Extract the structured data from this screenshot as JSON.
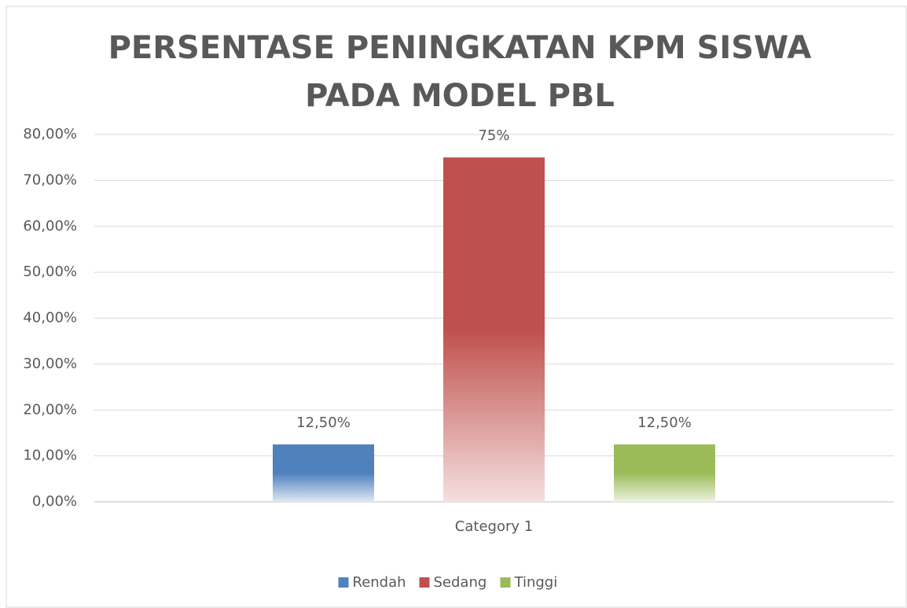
{
  "chart_data": {
    "type": "bar",
    "title": [
      "PERSENTASE PENINGKATAN KPM SISWA",
      "PADA MODEL PBL"
    ],
    "categories": [
      "Category 1"
    ],
    "series": [
      {
        "name": "Rendah",
        "color": "#4f81bd",
        "values": [
          12.5
        ],
        "value_labels": [
          "12,50%"
        ]
      },
      {
        "name": "Sedang",
        "color": "#c0504d",
        "values": [
          75
        ],
        "value_labels": [
          "75%"
        ]
      },
      {
        "name": "Tinggi",
        "color": "#9bbb59",
        "values": [
          12.5
        ],
        "value_labels": [
          "12,50%"
        ]
      }
    ],
    "ylim": [
      0,
      80
    ],
    "yticks": [
      {
        "value": 0,
        "label": "0,00%"
      },
      {
        "value": 10,
        "label": "10,00%"
      },
      {
        "value": 20,
        "label": "20,00%"
      },
      {
        "value": 30,
        "label": "30,00%"
      },
      {
        "value": 40,
        "label": "40,00%"
      },
      {
        "value": 50,
        "label": "50,00%"
      },
      {
        "value": 60,
        "label": "60,00%"
      },
      {
        "value": 70,
        "label": "70,00%"
      },
      {
        "value": 80,
        "label": "80,00%"
      }
    ],
    "grid": true,
    "legend": "bottom"
  }
}
